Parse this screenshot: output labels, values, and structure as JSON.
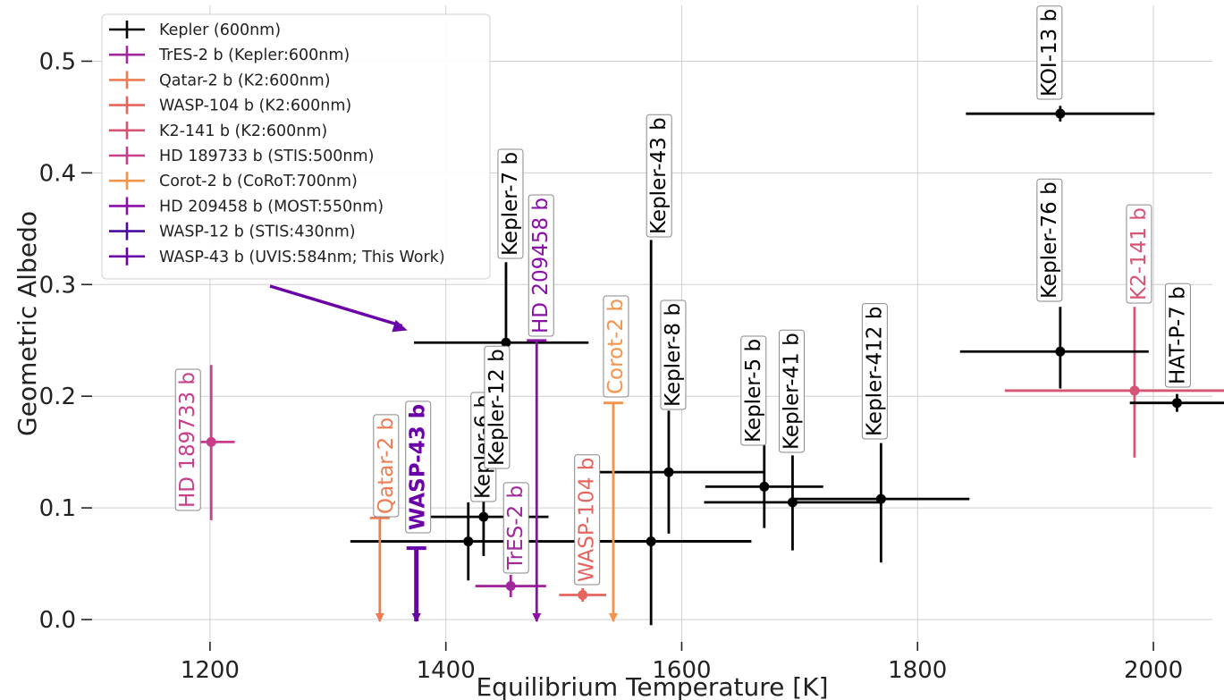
{
  "chart_data": {
    "type": "scatter",
    "xlabel": "Equilibrium Temperature [K]",
    "ylabel": "Geometric Albedo",
    "xlim": [
      1100,
      2050
    ],
    "ylim": [
      -0.02,
      0.55
    ],
    "xticks": [
      1200,
      1400,
      1600,
      1800,
      2000
    ],
    "yticks": [
      0.0,
      0.1,
      0.2,
      0.3,
      0.4,
      0.5
    ],
    "xtick_labels": [
      "1200",
      "1400",
      "1600",
      "1800",
      "2000"
    ],
    "ytick_labels": [
      "0.0",
      "0.1",
      "0.2",
      "0.3",
      "0.4",
      "0.5"
    ],
    "grid": true,
    "legend_position": "top-left",
    "legend": [
      {
        "label": "Kepler (600nm)",
        "color": "#000000"
      },
      {
        "label": "TrES-2 b (Kepler:600nm)",
        "color": "#a0279c"
      },
      {
        "label": "Qatar-2 b (K2:600nm)",
        "color": "#ee7b51"
      },
      {
        "label": "WASP-104 b (K2:600nm)",
        "color": "#e5645e"
      },
      {
        "label": "K2-141 b (K2:600nm)",
        "color": "#d55474"
      },
      {
        "label": "HD 189733 b (STIS:500nm)",
        "color": "#c93e8a"
      },
      {
        "label": "Corot-2 b (CoRoT:700nm)",
        "color": "#f6934a"
      },
      {
        "label": "HD 209458 b (MOST:550nm)",
        "color": "#8a0ea8"
      },
      {
        "label": "WASP-12 b (STIS:430nm)",
        "color": "#4a0aa0"
      },
      {
        "label": "WASP-43 b (UVIS:584nm; This Work)",
        "color": "#6a00a8"
      }
    ],
    "points": [
      {
        "label": "HD 189733 b",
        "color": "#c93e8a",
        "x": 1201,
        "y": 0.159,
        "xerr": [
          20,
          20
        ],
        "yerr": [
          0.07,
          0.069
        ]
      },
      {
        "label": "TrES-2 b",
        "color": "#a0279c",
        "x": 1455,
        "y": 0.03,
        "xerr": [
          30,
          30
        ],
        "yerr": [
          0.01,
          0.01
        ]
      },
      {
        "label": "WASP-104 b",
        "color": "#e5645e",
        "x": 1516,
        "y": 0.022,
        "xerr": [
          20,
          20
        ],
        "yerr": [
          0.006,
          0.006
        ]
      },
      {
        "label": "K2-141 b",
        "color": "#d55474",
        "x": 1984,
        "y": 0.205,
        "xerr": [
          110,
          110
        ],
        "yerr": [
          0.06,
          0.075
        ]
      },
      {
        "label": "Kepler-6 b",
        "color": "#000000",
        "x": 1419,
        "y": 0.07,
        "xerr": [
          100,
          240
        ],
        "yerr": [
          0.035,
          0.035
        ]
      },
      {
        "label": "Kepler-12 b",
        "color": "#000000",
        "x": 1432,
        "y": 0.092,
        "xerr": [
          60,
          55
        ],
        "yerr": [
          0.035,
          0.04
        ]
      },
      {
        "label": "Kepler-7 b",
        "color": "#000000",
        "x": 1451,
        "y": 0.248,
        "xerr": [
          78,
          70
        ],
        "yerr": [
          0.07,
          0.072
        ]
      },
      {
        "label": "Kepler-43 b",
        "color": "#000000",
        "x": 1574,
        "y": 0.07,
        "xerr": [
          50,
          85
        ],
        "yerr": [
          0.075,
          0.27
        ]
      },
      {
        "label": "Kepler-8 b",
        "color": "#000000",
        "x": 1589,
        "y": 0.132,
        "xerr": [
          60,
          81
        ],
        "yerr": [
          0.055,
          0.055
        ]
      },
      {
        "label": "Kepler-5 b",
        "color": "#000000",
        "x": 1670,
        "y": 0.119,
        "xerr": [
          50,
          50
        ],
        "yerr": [
          0.037,
          0.037
        ]
      },
      {
        "label": "Kepler-41 b",
        "color": "#000000",
        "x": 1694,
        "y": 0.105,
        "xerr": [
          75,
          75
        ],
        "yerr": [
          0.043,
          0.042
        ]
      },
      {
        "label": "Kepler-412 b",
        "color": "#000000",
        "x": 1769,
        "y": 0.108,
        "xerr": [
          75,
          75
        ],
        "yerr": [
          0.057,
          0.05
        ]
      },
      {
        "label": "KOI-13 b",
        "color": "#000000",
        "x": 1921,
        "y": 0.453,
        "xerr": [
          80,
          80
        ],
        "yerr": [
          0.007,
          0.007
        ]
      },
      {
        "label": "Kepler-76 b",
        "color": "#000000",
        "x": 1921,
        "y": 0.24,
        "xerr": [
          85,
          75
        ],
        "yerr": [
          0.033,
          0.04
        ]
      },
      {
        "label": "HAT-P-7 b",
        "color": "#000000",
        "x": 2020,
        "y": 0.194,
        "xerr": [
          40,
          40
        ],
        "yerr": [
          0.008,
          0.008
        ]
      }
    ],
    "upper_limits": [
      {
        "label": "Qatar-2 b",
        "color": "#ee7b51",
        "x": 1344,
        "y": 0.091
      },
      {
        "label": "WASP-43 b",
        "color": "#6a00a8",
        "x": 1375,
        "y": 0.064
      },
      {
        "label": "HD 209458 b",
        "color": "#8a0ea8",
        "x": 1477,
        "y": 0.25
      },
      {
        "label": "Corot-2 b",
        "color": "#f6934a",
        "x": 1542,
        "y": 0.194
      }
    ]
  }
}
